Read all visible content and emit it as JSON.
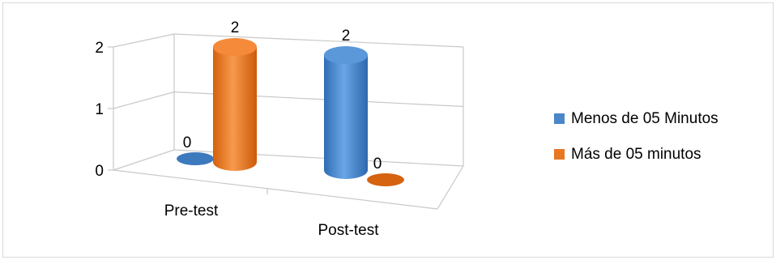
{
  "chart_data": {
    "type": "bar",
    "style": "3d-cylinder",
    "categories": [
      "Pre-test",
      "Post-test"
    ],
    "series": [
      {
        "name": "Menos de 05 Minutos",
        "values": [
          0,
          2
        ],
        "color": "#4a86c8"
      },
      {
        "name": "Más de 05 minutos",
        "values": [
          2,
          0
        ],
        "color": "#e87722"
      }
    ],
    "data_labels": [
      "0",
      "2",
      "2",
      "0"
    ],
    "y_ticks": [
      "0",
      "1",
      "2"
    ],
    "ylim": [
      0,
      2
    ],
    "grid": true,
    "legend_position": "right"
  }
}
